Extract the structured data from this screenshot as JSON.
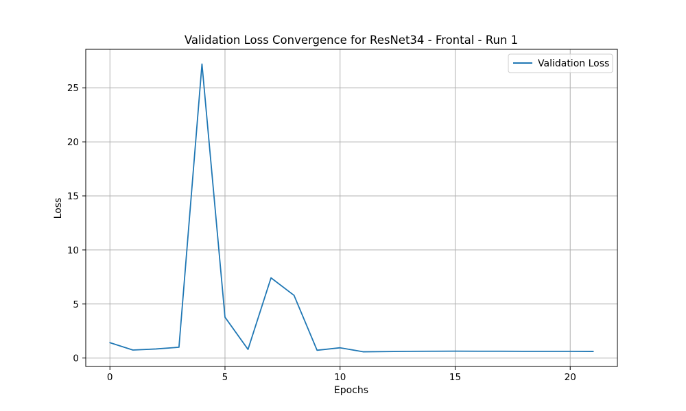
{
  "chart_data": {
    "type": "line",
    "title": "Validation Loss Convergence for ResNet34 - Frontal - Run 1",
    "xlabel": "Epochs",
    "ylabel": "Loss",
    "x": [
      0,
      1,
      2,
      3,
      4,
      5,
      6,
      7,
      8,
      9,
      10,
      11,
      12,
      13,
      14,
      15,
      16,
      17,
      18,
      19,
      20,
      21
    ],
    "series": [
      {
        "name": "Validation Loss",
        "color": "#1f77b4",
        "values": [
          1.42,
          0.74,
          0.84,
          1.0,
          27.2,
          3.78,
          0.8,
          7.42,
          5.8,
          0.72,
          0.95,
          0.58,
          0.6,
          0.62,
          0.63,
          0.64,
          0.63,
          0.63,
          0.62,
          0.62,
          0.62,
          0.61
        ]
      }
    ],
    "xlim": [
      -1.05,
      22.05
    ],
    "ylim": [
      -0.78,
      28.56
    ],
    "xticks": [
      0,
      5,
      10,
      15,
      20
    ],
    "yticks": [
      0,
      5,
      10,
      15,
      20,
      25
    ],
    "xtick_labels": [
      "0",
      "5",
      "10",
      "15",
      "20"
    ],
    "ytick_labels": [
      "0",
      "5",
      "10",
      "15",
      "20",
      "25"
    ],
    "grid": true,
    "legend_position": "top-right"
  }
}
